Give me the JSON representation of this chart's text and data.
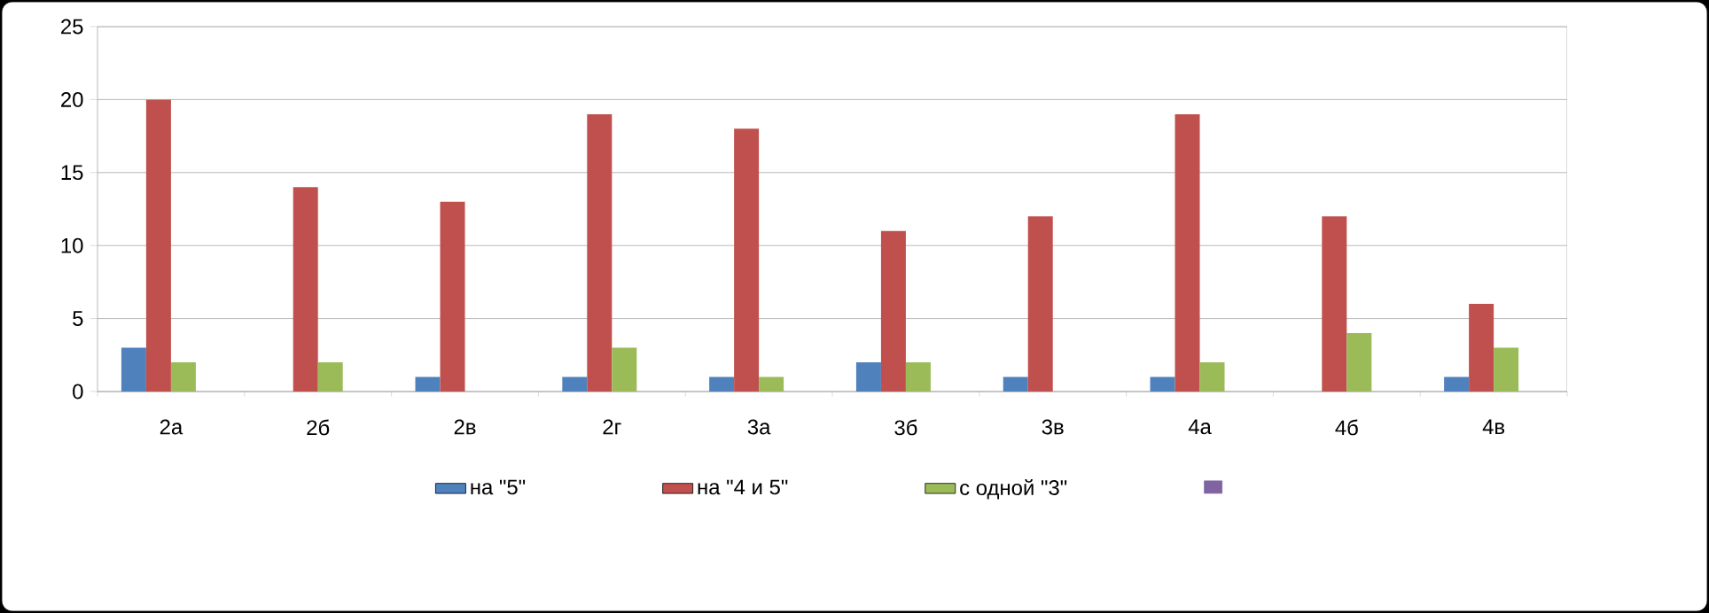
{
  "chart_data": {
    "type": "bar",
    "categories": [
      "2а",
      "2б",
      "2в",
      "2г",
      "3а",
      "3б",
      "3в",
      "4а",
      "4б",
      "4в"
    ],
    "series": [
      {
        "name": "на \"5\"",
        "color": "#4f81bd",
        "values": [
          3,
          0,
          1,
          1,
          1,
          2,
          1,
          1,
          0,
          1
        ]
      },
      {
        "name": "на \"4 и 5\"",
        "color": "#c0504d",
        "values": [
          20,
          14,
          13,
          19,
          18,
          11,
          12,
          19,
          12,
          6
        ]
      },
      {
        "name": "с одной \"3\"",
        "color": "#9bbb59",
        "values": [
          2,
          2,
          0,
          3,
          1,
          2,
          0,
          2,
          4,
          3
        ]
      },
      {
        "color": "#8064a2",
        "values": [
          null,
          null,
          null,
          null,
          null,
          null,
          null,
          null,
          null,
          null
        ]
      }
    ],
    "ylim": [
      0,
      25
    ],
    "yticks": [
      0,
      5,
      10,
      15,
      20,
      25
    ],
    "grid": "y",
    "legend": "bottom"
  }
}
